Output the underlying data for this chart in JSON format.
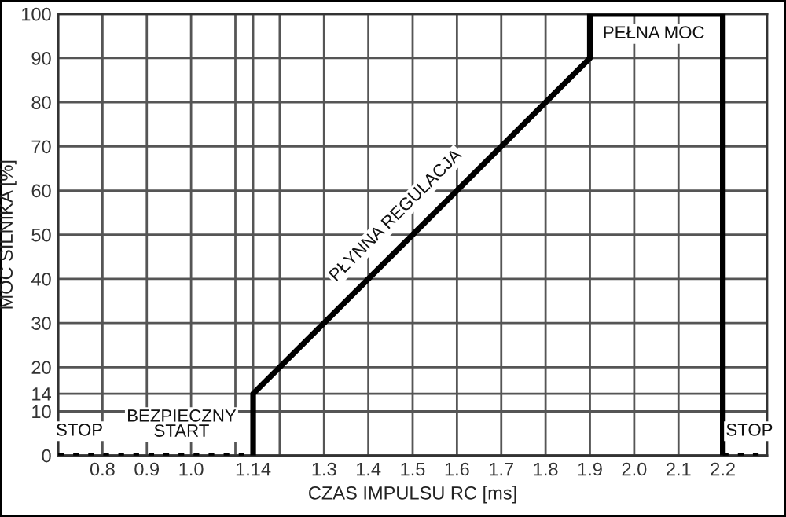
{
  "chart_data": {
    "type": "line",
    "xlabel": "CZAS IMPULSU RC [ms]",
    "ylabel": "MOC SILNIKA [%]",
    "series": [
      {
        "x": [
          0.7,
          1.14
        ],
        "values": [
          0,
          0
        ],
        "color": "#000000",
        "line_style": "dotted"
      },
      {
        "x": [
          1.14,
          1.14,
          1.9,
          1.9,
          2.2,
          2.2
        ],
        "values": [
          0,
          14,
          90,
          100,
          100,
          0
        ],
        "color": "#000000",
        "line_style": "solid"
      },
      {
        "x": [
          2.2,
          2.3
        ],
        "values": [
          0,
          0
        ],
        "color": "#000000",
        "line_style": "dotted"
      }
    ],
    "xlim": [
      0.7,
      2.3
    ],
    "xticks": [
      {
        "value": 0.7,
        "label": null
      },
      {
        "value": 0.8,
        "label": "0.8"
      },
      {
        "value": 0.9,
        "label": "0.9"
      },
      {
        "value": 1.0,
        "label": "1.0"
      },
      {
        "value": 1.1,
        "label": null
      },
      {
        "value": 1.14,
        "label": "1.14"
      },
      {
        "value": 1.2,
        "label": null
      },
      1.3,
      1.4,
      1.5,
      1.6,
      1.7,
      1.8,
      1.9,
      {
        "value": 2.0,
        "label": "2.0"
      },
      2.1,
      2.2,
      {
        "value": 2.3,
        "label": null
      }
    ],
    "ylim": [
      0,
      100
    ],
    "yticks": [
      0,
      10,
      14,
      20,
      30,
      40,
      50,
      60,
      70,
      80,
      90,
      100
    ],
    "grid": true,
    "marker": "none",
    "annotations": [
      "STOP",
      "BEZPIECZNY\nSTART",
      {
        "text": "PŁYNNA REGULACJA",
        "x": 1.5,
        "y": 50
      },
      "PEŁNA MOC",
      "STOP"
    ]
  }
}
